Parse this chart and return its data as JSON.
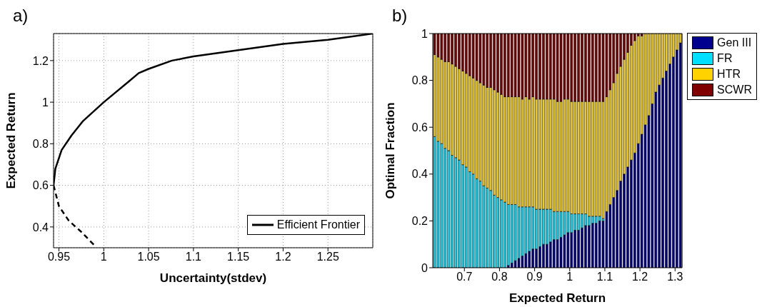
{
  "chart_data": [
    {
      "type": "line",
      "title": "a)",
      "xlabel": "Uncertainty(stdev)",
      "ylabel": "Expected Return",
      "xlim": [
        0.944,
        1.3
      ],
      "ylim": [
        0.3,
        1.33
      ],
      "xticks": [
        0.95,
        1,
        1.05,
        1.1,
        1.15,
        1.2,
        1.25
      ],
      "yticks": [
        0.4,
        0.6,
        0.8,
        1,
        1.2
      ],
      "grid": true,
      "legend": "bottom right",
      "series": [
        {
          "name": "Efficient Frontier",
          "color": "#000000",
          "x": [
            0.944,
            0.946,
            0.953,
            0.964,
            0.977,
            1.0,
            1.028,
            1.039,
            1.05,
            1.076,
            1.1,
            1.15,
            1.2,
            1.25,
            1.3
          ],
          "values": [
            0.6,
            0.68,
            0.77,
            0.84,
            0.91,
            1.0,
            1.1,
            1.14,
            1.16,
            1.2,
            1.22,
            1.25,
            1.28,
            1.3,
            1.33
          ]
        },
        {
          "color": "#000000",
          "line_style": "dashed",
          "x": [
            0.944,
            0.95,
            0.961,
            0.974,
            0.99
          ],
          "values": [
            0.6,
            0.5,
            0.43,
            0.38,
            0.31
          ]
        }
      ]
    },
    {
      "type": "bar",
      "stacked": true,
      "title": "b)",
      "xlabel": "Expected Return",
      "ylabel": "Optimal Fraction",
      "xlim": [
        0.61,
        1.32
      ],
      "ylim": [
        0,
        1
      ],
      "xticks": [
        0.7,
        0.8,
        0.9,
        1,
        1.1,
        1.2,
        1.3
      ],
      "yticks": [
        0,
        0.2,
        0.4,
        0.6,
        0.8,
        1
      ],
      "legend": "right",
      "x": [
        0.615,
        0.625,
        0.635,
        0.645,
        0.655,
        0.665,
        0.675,
        0.685,
        0.695,
        0.705,
        0.715,
        0.725,
        0.735,
        0.745,
        0.755,
        0.765,
        0.775,
        0.785,
        0.795,
        0.805,
        0.815,
        0.825,
        0.835,
        0.845,
        0.855,
        0.865,
        0.875,
        0.885,
        0.895,
        0.905,
        0.915,
        0.925,
        0.935,
        0.945,
        0.955,
        0.965,
        0.975,
        0.985,
        0.995,
        1.005,
        1.015,
        1.025,
        1.035,
        1.045,
        1.055,
        1.065,
        1.075,
        1.085,
        1.095,
        1.105,
        1.115,
        1.125,
        1.135,
        1.145,
        1.155,
        1.165,
        1.175,
        1.185,
        1.195,
        1.205,
        1.215,
        1.225,
        1.235,
        1.245,
        1.255,
        1.265,
        1.275,
        1.285,
        1.295,
        1.305,
        1.315
      ],
      "series": [
        {
          "name": "Gen III",
          "color": "#00008f",
          "values": [
            0,
            0,
            0,
            0,
            0,
            0,
            0,
            0,
            0,
            0,
            0,
            0,
            0,
            0,
            0,
            0,
            0,
            0,
            0,
            0,
            0,
            0.01,
            0.02,
            0.03,
            0.04,
            0.05,
            0.06,
            0.07,
            0.08,
            0.08,
            0.09,
            0.1,
            0.1,
            0.11,
            0.12,
            0.12,
            0.13,
            0.14,
            0.15,
            0.15,
            0.16,
            0.16,
            0.17,
            0.18,
            0.18,
            0.19,
            0.19,
            0.2,
            0.2,
            0.24,
            0.27,
            0.3,
            0.33,
            0.37,
            0.4,
            0.43,
            0.46,
            0.49,
            0.53,
            0.57,
            0.61,
            0.65,
            0.7,
            0.75,
            0.78,
            0.81,
            0.84,
            0.87,
            0.9,
            0.93,
            0.96
          ]
        },
        {
          "name": "FR",
          "color": "#00dfff",
          "values": [
            0.56,
            0.54,
            0.53,
            0.51,
            0.5,
            0.48,
            0.47,
            0.46,
            0.44,
            0.43,
            0.41,
            0.4,
            0.38,
            0.37,
            0.35,
            0.34,
            0.33,
            0.31,
            0.3,
            0.29,
            0.28,
            0.26,
            0.25,
            0.24,
            0.22,
            0.21,
            0.2,
            0.19,
            0.18,
            0.17,
            0.16,
            0.15,
            0.15,
            0.14,
            0.12,
            0.12,
            0.11,
            0.1,
            0.09,
            0.08,
            0.07,
            0.07,
            0.06,
            0.05,
            0.04,
            0.03,
            0.03,
            0.02,
            0.01,
            0,
            0,
            0,
            0,
            0,
            0,
            0,
            0,
            0,
            0,
            0,
            0,
            0,
            0,
            0,
            0,
            0,
            0,
            0,
            0,
            0,
            0
          ]
        },
        {
          "name": "HTR",
          "color": "#ffd200",
          "values": [
            0.35,
            0.36,
            0.36,
            0.37,
            0.38,
            0.39,
            0.39,
            0.39,
            0.4,
            0.4,
            0.41,
            0.41,
            0.42,
            0.42,
            0.43,
            0.43,
            0.44,
            0.45,
            0.45,
            0.45,
            0.45,
            0.46,
            0.46,
            0.46,
            0.47,
            0.46,
            0.47,
            0.46,
            0.47,
            0.47,
            0.47,
            0.47,
            0.47,
            0.47,
            0.48,
            0.47,
            0.47,
            0.48,
            0.48,
            0.48,
            0.48,
            0.48,
            0.48,
            0.48,
            0.49,
            0.49,
            0.49,
            0.49,
            0.5,
            0.49,
            0.49,
            0.49,
            0.5,
            0.49,
            0.49,
            0.49,
            0.49,
            0.48,
            0.46,
            0.42,
            0.39,
            0.35,
            0.3,
            0.25,
            0.22,
            0.19,
            0.16,
            0.13,
            0.1,
            0.07,
            0.04
          ]
        },
        {
          "name": "SCWR",
          "color": "#800000",
          "values": [
            0.09,
            0.1,
            0.11,
            0.12,
            0.12,
            0.13,
            0.14,
            0.15,
            0.16,
            0.17,
            0.18,
            0.19,
            0.2,
            0.21,
            0.22,
            0.23,
            0.23,
            0.24,
            0.25,
            0.26,
            0.27,
            0.27,
            0.27,
            0.27,
            0.27,
            0.28,
            0.27,
            0.28,
            0.27,
            0.28,
            0.28,
            0.28,
            0.28,
            0.28,
            0.28,
            0.29,
            0.29,
            0.28,
            0.28,
            0.29,
            0.29,
            0.29,
            0.29,
            0.29,
            0.29,
            0.29,
            0.29,
            0.29,
            0.29,
            0.27,
            0.24,
            0.21,
            0.17,
            0.14,
            0.11,
            0.08,
            0.05,
            0.03,
            0.01,
            0.01,
            0,
            0,
            0,
            0,
            0,
            0,
            0,
            0,
            0,
            0,
            0
          ]
        }
      ]
    }
  ]
}
